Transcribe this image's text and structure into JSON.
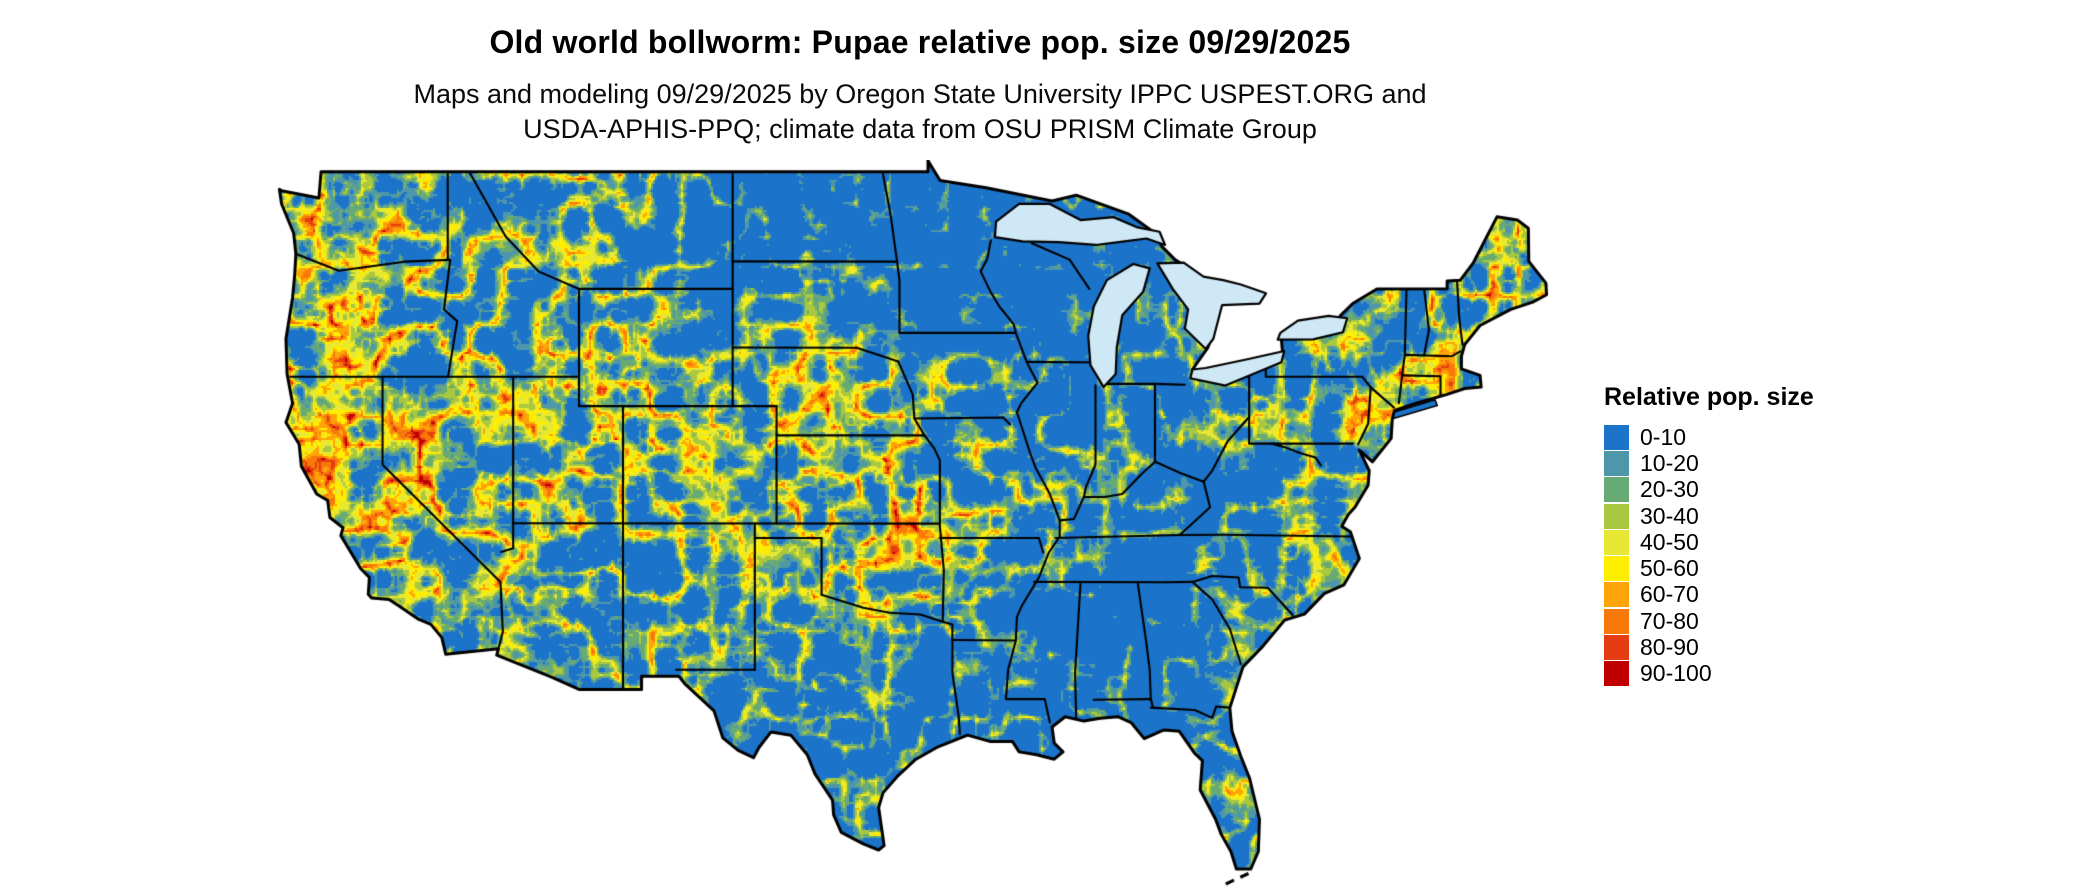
{
  "header": {
    "title": "Old world bollworm: Pupae relative pop. size 09/29/2025",
    "subtitle_line1": "Maps and modeling 09/29/2025 by Oregon State University IPPC USPEST.ORG and",
    "subtitle_line2": "USDA-APHIS-PPQ; climate data from OSU PRISM Climate Group"
  },
  "legend": {
    "title": "Relative pop. size",
    "entries": [
      {
        "label": "0-10",
        "color": "#1b74c9"
      },
      {
        "label": "10-20",
        "color": "#4e97ab"
      },
      {
        "label": "20-30",
        "color": "#68aa74"
      },
      {
        "label": "30-40",
        "color": "#a9c83f"
      },
      {
        "label": "40-50",
        "color": "#e6e834"
      },
      {
        "label": "50-60",
        "color": "#ffee00"
      },
      {
        "label": "60-70",
        "color": "#ffa408"
      },
      {
        "label": "70-80",
        "color": "#f7790a"
      },
      {
        "label": "80-90",
        "color": "#e53c11"
      },
      {
        "label": "90-100",
        "color": "#c00000"
      }
    ]
  },
  "map": {
    "region": "Contiguous United States",
    "kind": "relative population size raster",
    "lake_color": "#cfe8f6",
    "boundary_color": "#000000",
    "background_color": "#ffffff"
  }
}
